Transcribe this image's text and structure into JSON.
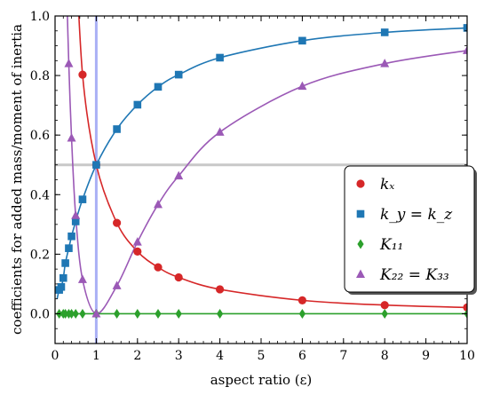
{
  "chart_data": {
    "type": "line",
    "xlabel": "aspect ratio (ε)",
    "ylabel": "coefficients for added mass/moment of inertia",
    "xlim": [
      0,
      10
    ],
    "ylim": [
      -0.1,
      1.0
    ],
    "x_ticks": [
      0,
      1,
      2,
      3,
      4,
      5,
      6,
      7,
      8,
      9,
      10
    ],
    "y_ticks": [
      0.0,
      0.2,
      0.4,
      0.6,
      0.8,
      1.0
    ],
    "reference_lines": {
      "vertical_x": 1.0,
      "horizontal_y": 0.5
    },
    "legend_position": "lower-right",
    "series": [
      {
        "name": "k_x",
        "label": "kₓ",
        "color": "#d62728",
        "marker": "circle",
        "markers": {
          "x": [
            0.667,
            1.0,
            1.5,
            2.0,
            2.5,
            3.0,
            4.0,
            6.0,
            8.0,
            10.0
          ],
          "y": [
            0.803,
            0.5,
            0.305,
            0.209,
            0.156,
            0.122,
            0.082,
            0.045,
            0.029,
            0.021
          ]
        }
      },
      {
        "name": "k_y = k_z",
        "label": "k_y = k_z",
        "color": "#1f77b4",
        "marker": "square",
        "markers": {
          "x": [
            0.1,
            0.15,
            0.2,
            0.25,
            0.333,
            0.4,
            0.5,
            0.667,
            1.0,
            1.5,
            2.0,
            2.5,
            3.0,
            4.0,
            6.0,
            8.0,
            10.0
          ],
          "y": [
            0.08,
            0.09,
            0.12,
            0.17,
            0.22,
            0.26,
            0.31,
            0.384,
            0.5,
            0.62,
            0.702,
            0.762,
            0.803,
            0.86,
            0.917,
            0.945,
            0.96
          ]
        }
      },
      {
        "name": "K_11",
        "label": "K₁₁",
        "color": "#2ca02c",
        "marker": "diamond",
        "markers": {
          "x": [
            0.1,
            0.2,
            0.25,
            0.333,
            0.4,
            0.5,
            0.667,
            1.0,
            1.5,
            2.0,
            2.5,
            3.0,
            4.0,
            6.0,
            8.0,
            10.0
          ],
          "y": [
            0,
            0,
            0,
            0,
            0,
            0,
            0,
            0,
            0,
            0,
            0,
            0,
            0,
            0,
            0,
            0
          ]
        }
      },
      {
        "name": "K_22 = K_33",
        "label": "K₂₂ = K₃₃",
        "color": "#9b59b6",
        "marker": "triangle",
        "markers": {
          "x": [
            0.333,
            0.4,
            0.5,
            0.667,
            1.0,
            1.5,
            2.0,
            2.5,
            3.0,
            4.0,
            6.0,
            8.0,
            10.0
          ],
          "y": [
            0.84,
            0.59,
            0.33,
            0.115,
            0.0,
            0.094,
            0.241,
            0.367,
            0.463,
            0.61,
            0.764,
            0.84,
            0.884
          ]
        }
      }
    ]
  }
}
